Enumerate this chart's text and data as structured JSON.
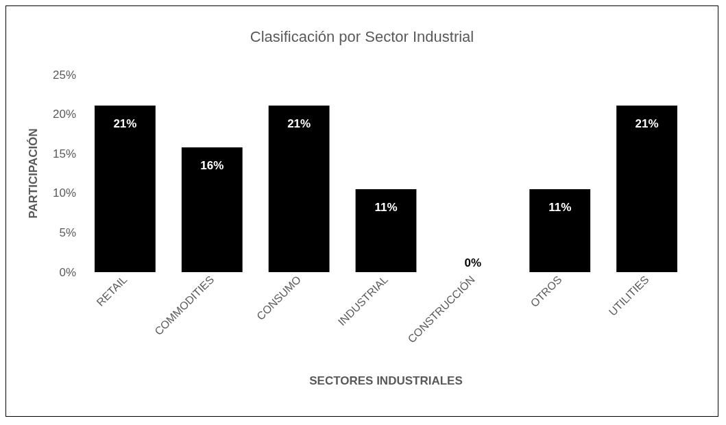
{
  "chart_data": {
    "type": "bar",
    "title": "Clasificación por Sector Industrial",
    "xlabel": "SECTORES INDUSTRIALES",
    "ylabel": "PARTICIPACIÓN",
    "categories": [
      "RETAIL",
      "COMMODITIES",
      "CONSUMO",
      "INDUSTRIAL",
      "CONSTRUCCIÓN",
      "OTROS",
      "UTILITIES"
    ],
    "values": [
      21.1,
      15.8,
      21.1,
      10.5,
      0,
      10.5,
      21.1
    ],
    "value_labels": [
      "21%",
      "16%",
      "21%",
      "11%",
      "0%",
      "11%",
      "21%"
    ],
    "color": "#000000",
    "ylim": [
      0,
      25
    ],
    "yticks": [
      {
        "value": 0,
        "label": "0%"
      },
      {
        "value": 5,
        "label": "5%"
      },
      {
        "value": 10,
        "label": "10%"
      },
      {
        "value": 15,
        "label": "15%"
      },
      {
        "value": 20,
        "label": "20%"
      },
      {
        "value": 25,
        "label": "25%"
      }
    ],
    "grid": false
  }
}
